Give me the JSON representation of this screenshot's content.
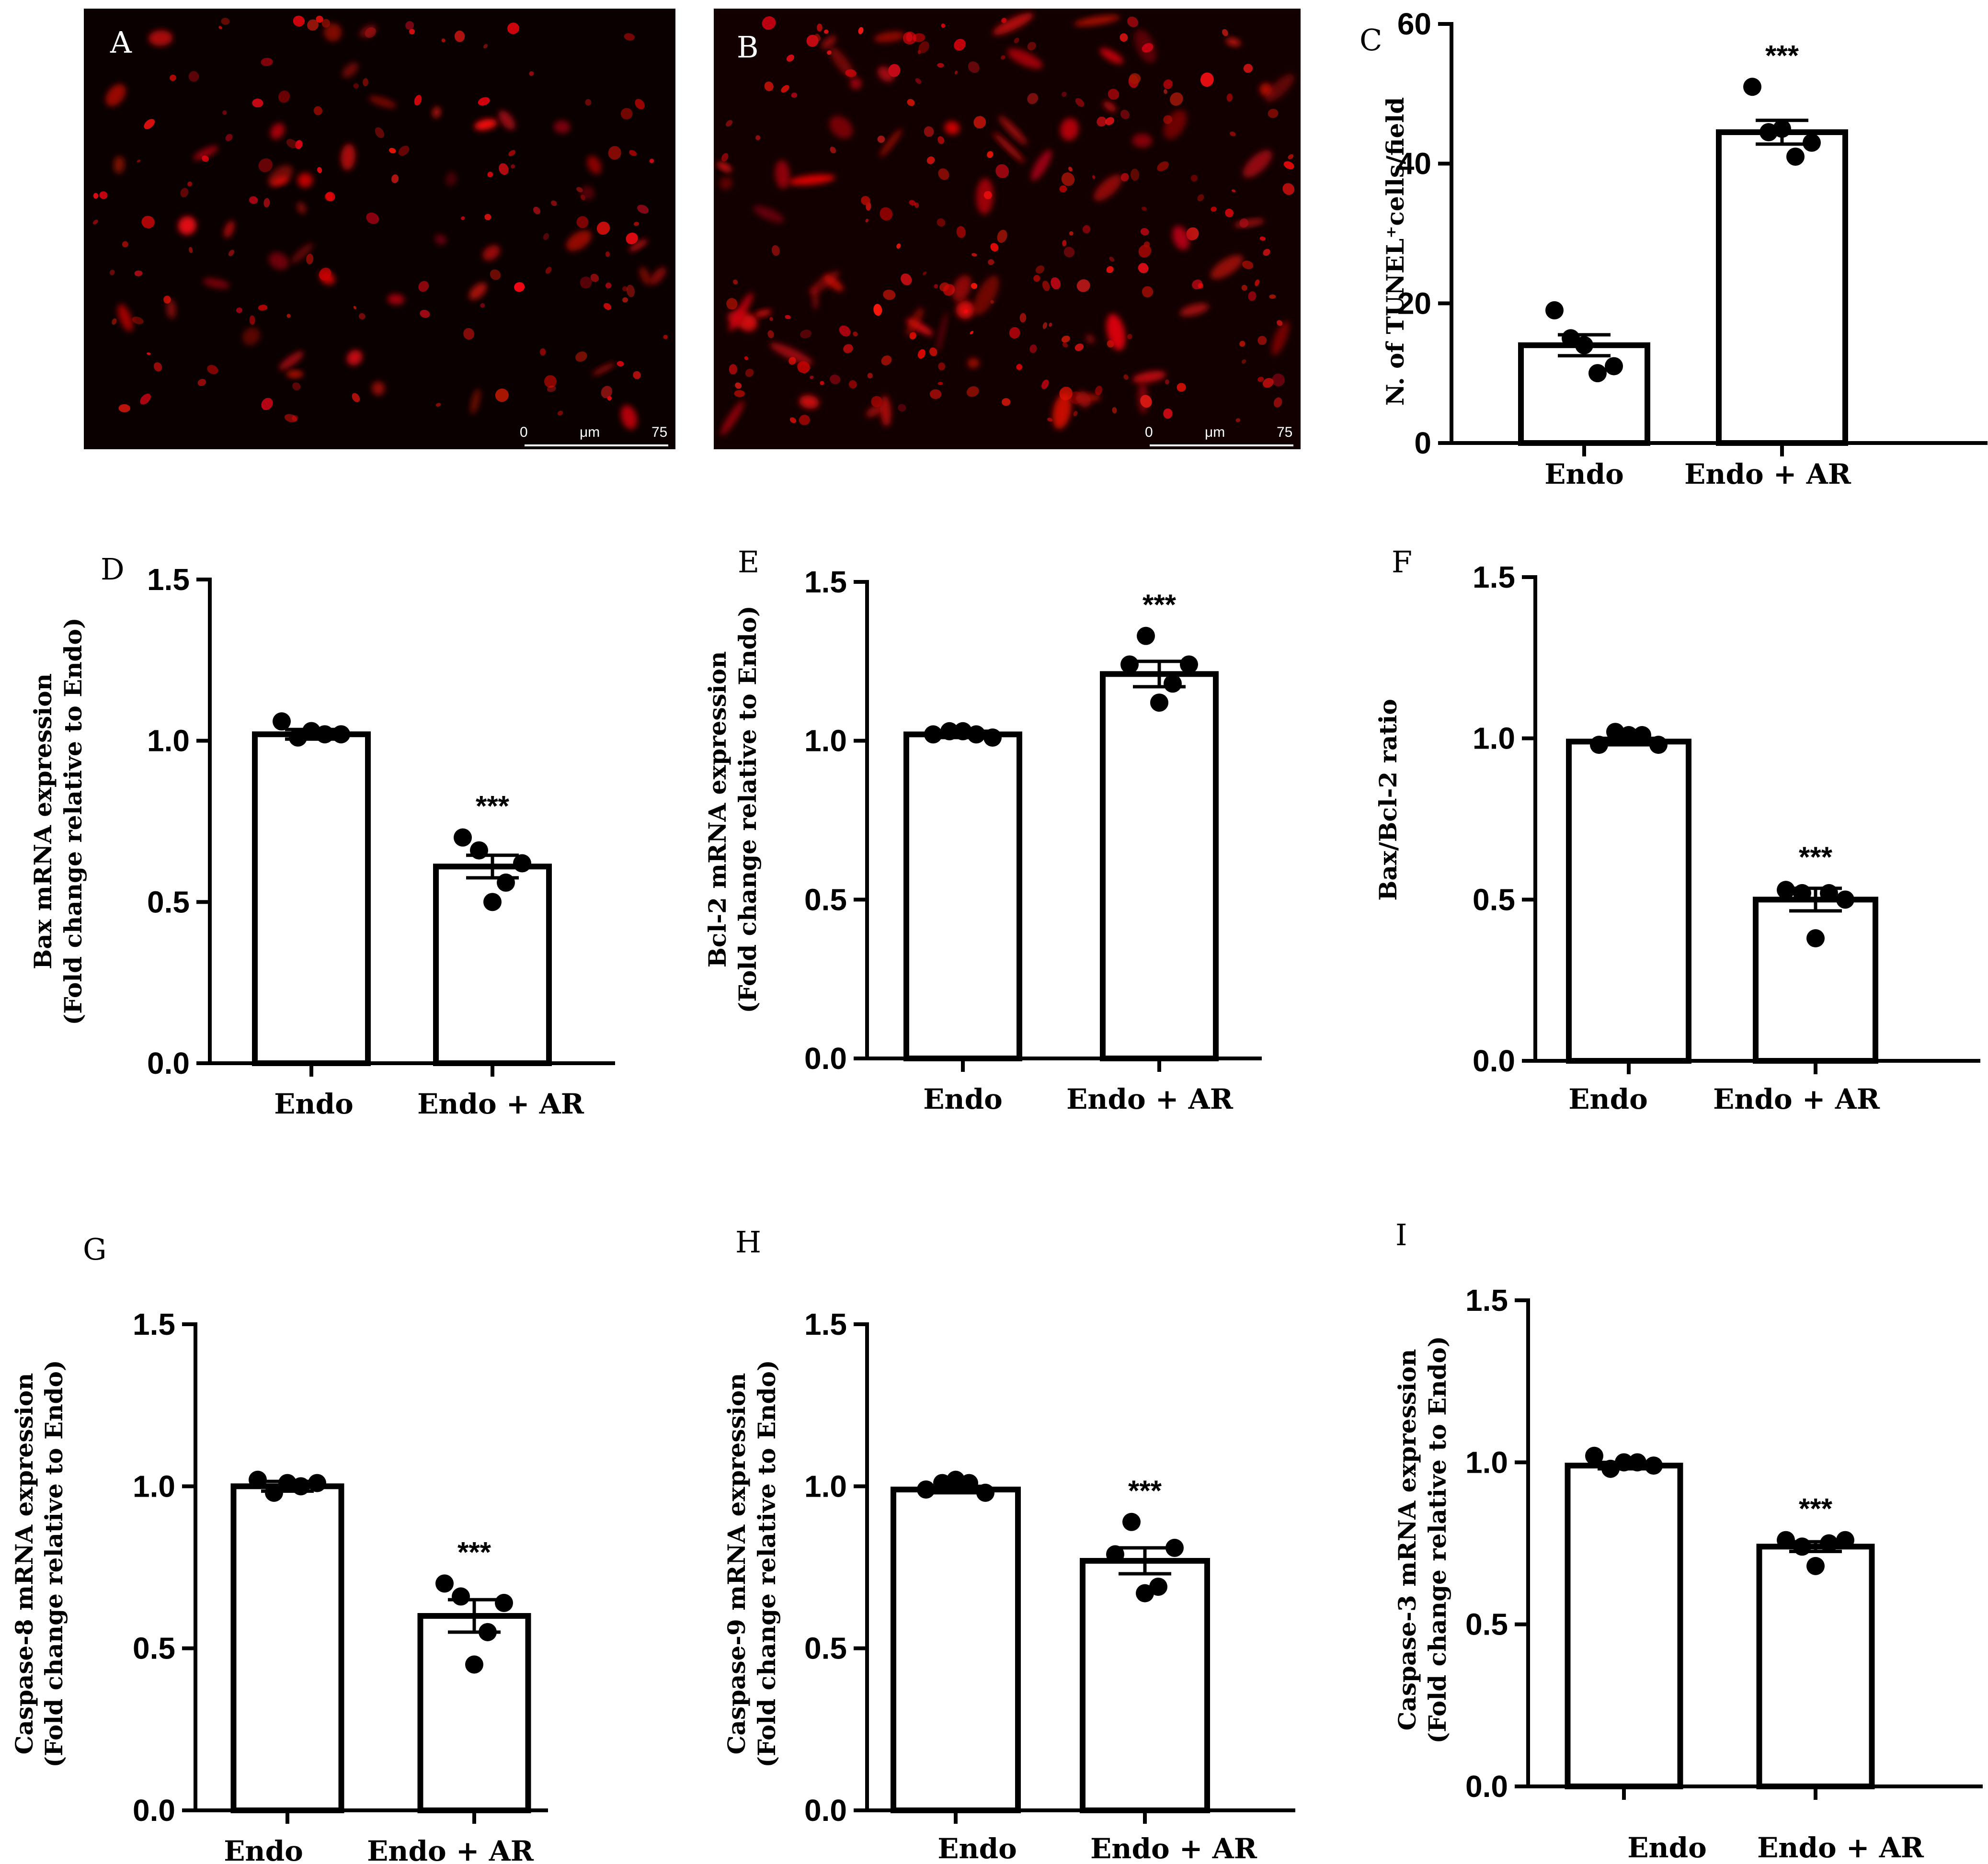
{
  "micrographs": [
    {
      "letter": "A",
      "scale_min": "0",
      "scale_unit": "μm",
      "scale_max": "75"
    },
    {
      "letter": "B",
      "scale_min": "0",
      "scale_unit": "μm",
      "scale_max": "75"
    }
  ],
  "chart_data": [
    {
      "panel": "C",
      "type": "bar",
      "categories": [
        "Endo",
        "Endo + AR"
      ],
      "values": [
        14,
        44.5
      ],
      "errors": [
        1.5,
        1.7
      ],
      "points": [
        [
          19,
          15,
          14,
          10,
          11
        ],
        [
          51,
          44.5,
          45,
          41,
          43
        ]
      ],
      "significance": [
        "",
        "***"
      ],
      "ylabel_lines": [
        "N. of TUNEL⁺cells/field"
      ],
      "ylim": [
        0,
        60
      ],
      "yticks": [
        "0",
        "20",
        "40",
        "60"
      ]
    },
    {
      "panel": "D",
      "type": "bar",
      "categories": [
        "Endo",
        "Endo + AR"
      ],
      "values": [
        1.02,
        0.61
      ],
      "errors": [
        0.015,
        0.035
      ],
      "points": [
        [
          1.06,
          1.01,
          1.03,
          1.02,
          1.02
        ],
        [
          0.7,
          0.66,
          0.5,
          0.56,
          0.62
        ]
      ],
      "significance": [
        "",
        "***"
      ],
      "ylabel_lines": [
        "Bax mRNA expression",
        "(Fold change relative to Endo)"
      ],
      "ylim": [
        0,
        1.5
      ],
      "yticks": [
        "0.0",
        "0.5",
        "1.0",
        "1.5"
      ]
    },
    {
      "panel": "E",
      "type": "bar",
      "categories": [
        "Endo",
        "Endo + AR"
      ],
      "values": [
        1.02,
        1.21
      ],
      "errors": [
        0.01,
        0.04
      ],
      "points": [
        [
          1.02,
          1.03,
          1.03,
          1.02,
          1.01
        ],
        [
          1.24,
          1.33,
          1.12,
          1.18,
          1.24
        ]
      ],
      "significance": [
        "",
        "***"
      ],
      "ylabel_lines": [
        "Bcl-2 mRNA expression",
        "(Fold change relative to Endo)"
      ],
      "ylim": [
        0,
        1.5
      ],
      "yticks": [
        "0.0",
        "0.5",
        "1.0",
        "1.5"
      ]
    },
    {
      "panel": "F",
      "type": "bar",
      "categories": [
        "Endo",
        "Endo + AR"
      ],
      "values": [
        0.99,
        0.5
      ],
      "errors": [
        0.01,
        0.035
      ],
      "points": [
        [
          0.98,
          1.02,
          1.01,
          1.01,
          0.98
        ],
        [
          0.53,
          0.52,
          0.38,
          0.52,
          0.5
        ]
      ],
      "significance": [
        "",
        "***"
      ],
      "ylabel_lines": [
        "Bax/Bcl-2 ratio"
      ],
      "ylim": [
        0,
        1.5
      ],
      "yticks": [
        "0.0",
        "0.5",
        "1.0",
        "1.5"
      ]
    },
    {
      "panel": "G",
      "type": "bar",
      "categories": [
        "Endo",
        "Endo + AR"
      ],
      "values": [
        1.0,
        0.6
      ],
      "errors": [
        0.015,
        0.05
      ],
      "points": [
        [
          1.02,
          0.98,
          1.01,
          1.0,
          1.01
        ],
        [
          0.7,
          0.66,
          0.45,
          0.55,
          0.64
        ]
      ],
      "significance": [
        "",
        "***"
      ],
      "ylabel_lines": [
        "Caspase-8 mRNA expression",
        "(Fold change relative to Endo)"
      ],
      "ylim": [
        0,
        1.5
      ],
      "yticks": [
        "0.0",
        "0.5",
        "1.0",
        "1.5"
      ]
    },
    {
      "panel": "H",
      "type": "bar",
      "categories": [
        "Endo",
        "Endo + AR"
      ],
      "values": [
        0.99,
        0.77
      ],
      "errors": [
        0.01,
        0.04
      ],
      "points": [
        [
          0.99,
          1.01,
          1.02,
          1.01,
          0.98
        ],
        [
          0.79,
          0.89,
          0.67,
          0.69,
          0.81
        ]
      ],
      "significance": [
        "",
        "***"
      ],
      "ylabel_lines": [
        "Caspase-9 mRNA expression",
        "(Fold change relative to Endo)"
      ],
      "ylim": [
        0,
        1.5
      ],
      "yticks": [
        "0.0",
        "0.5",
        "1.0",
        "1.5"
      ]
    },
    {
      "panel": "I",
      "type": "bar",
      "categories": [
        "Endo",
        "Endo + AR"
      ],
      "values": [
        0.99,
        0.74
      ],
      "errors": [
        0.01,
        0.015
      ],
      "points": [
        [
          1.02,
          0.98,
          1.0,
          1.0,
          0.99
        ],
        [
          0.76,
          0.74,
          0.68,
          0.75,
          0.76
        ]
      ],
      "significance": [
        "",
        "***"
      ],
      "ylabel_lines": [
        "Caspase-3 mRNA expression",
        "(Fold change relative to Endo)"
      ],
      "ylim": [
        0,
        1.5
      ],
      "yticks": [
        "0.0",
        "0.5",
        "1.0",
        "1.5"
      ]
    }
  ]
}
